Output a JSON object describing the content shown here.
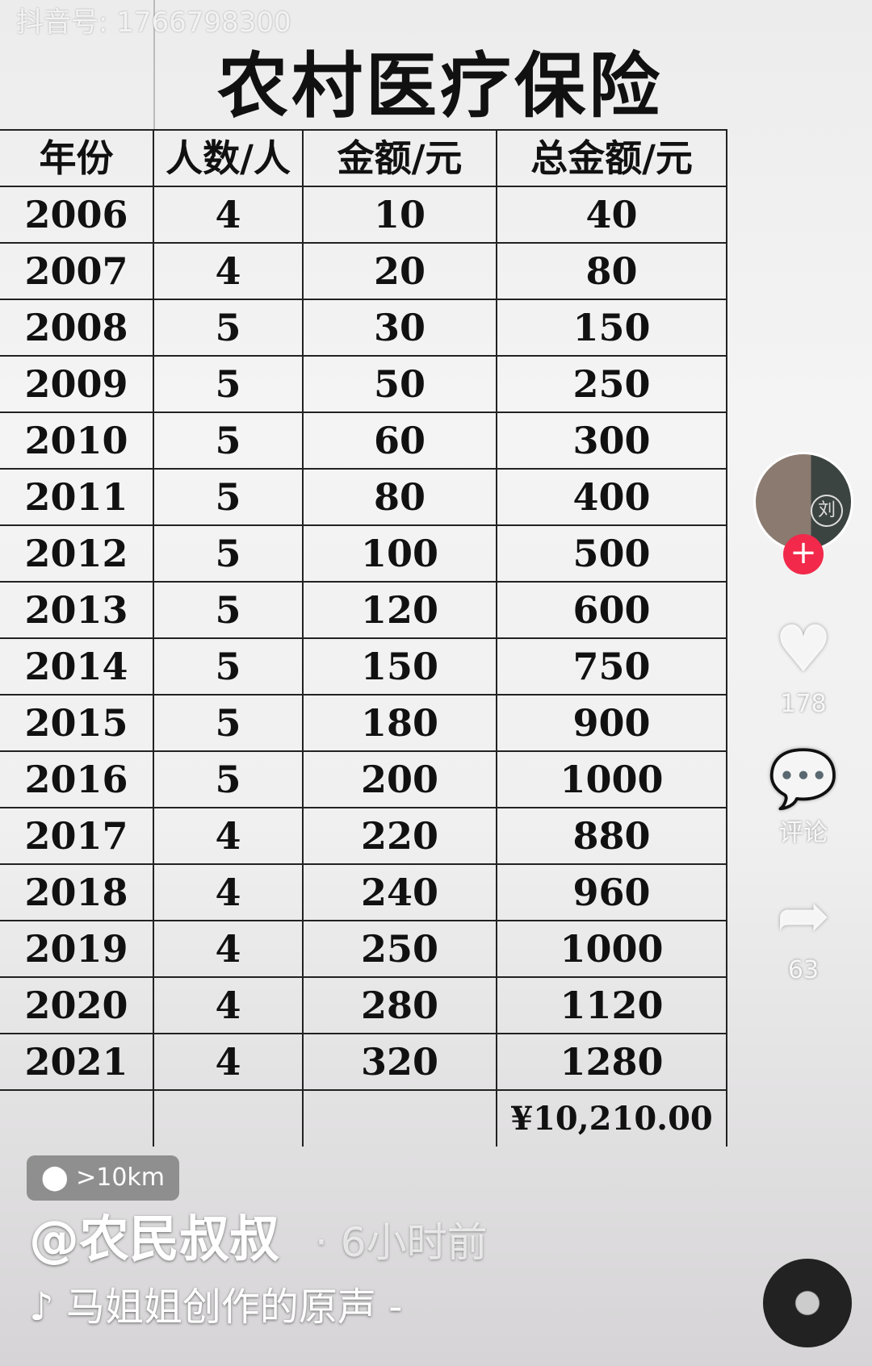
{
  "watermark": "抖音号: 1766798300",
  "title": "农村医疗保险",
  "table": {
    "headers": [
      "年份",
      "人数/人",
      "金额/元",
      "总金额/元"
    ],
    "rows": [
      [
        "2006",
        "4",
        "10",
        "40"
      ],
      [
        "2007",
        "4",
        "20",
        "80"
      ],
      [
        "2008",
        "5",
        "30",
        "150"
      ],
      [
        "2009",
        "5",
        "50",
        "250"
      ],
      [
        "2010",
        "5",
        "60",
        "300"
      ],
      [
        "2011",
        "5",
        "80",
        "400"
      ],
      [
        "2012",
        "5",
        "100",
        "500"
      ],
      [
        "2013",
        "5",
        "120",
        "600"
      ],
      [
        "2014",
        "5",
        "150",
        "750"
      ],
      [
        "2015",
        "5",
        "180",
        "900"
      ],
      [
        "2016",
        "5",
        "200",
        "1000"
      ],
      [
        "2017",
        "4",
        "220",
        "880"
      ],
      [
        "2018",
        "4",
        "240",
        "960"
      ],
      [
        "2019",
        "4",
        "250",
        "1000"
      ],
      [
        "2020",
        "4",
        "280",
        "1120"
      ],
      [
        "2021",
        "4",
        "320",
        "1280"
      ]
    ],
    "total": "¥10,210.00"
  },
  "overlay": {
    "avatar_text": "刘",
    "follow": "+",
    "likes": "178",
    "comments": "评论",
    "shares": "63",
    "location": ">10km",
    "author": "@农民叔叔",
    "time": "· 6小时前",
    "music": "♪ 马姐姐创作的原声 - "
  },
  "colors": {
    "follow": "#f2294a"
  }
}
